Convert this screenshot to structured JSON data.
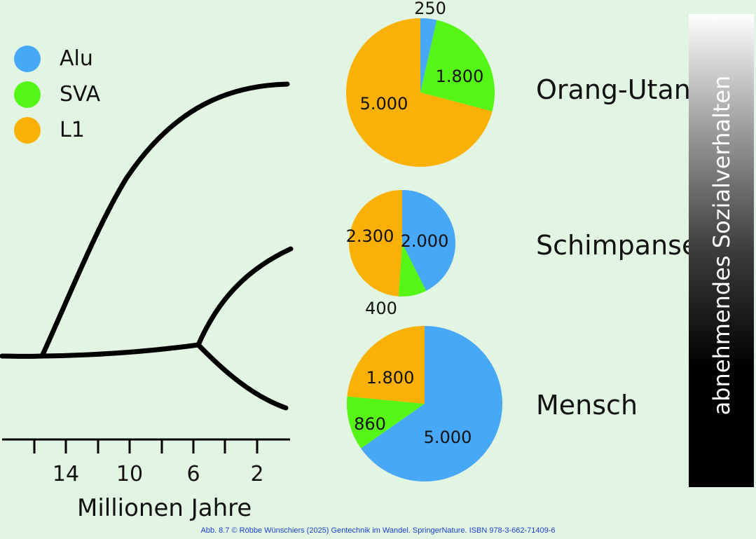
{
  "legend": [
    {
      "label": "Alu",
      "color": "#48a8f8"
    },
    {
      "label": "SVA",
      "color": "#55f516"
    },
    {
      "label": "L1",
      "color": "#fab005"
    }
  ],
  "species": {
    "orang": "Orang-Utan",
    "schimp": "Schimpanse",
    "mensch": "Mensch"
  },
  "axis": {
    "title": "Millionen Jahre",
    "tick_labels": [
      "14",
      "10",
      "6",
      "2"
    ]
  },
  "gradient_label": "abnehmendes Sozialverhalten",
  "footer": "Abb. 8.7 © Röbbe Wünschiers (2025) Gentechnik im Wandel. SpringerNature. ISBN 978-3-662-71409-6",
  "chart_data": {
    "type": "pie",
    "series_names": [
      "Alu",
      "SVA",
      "L1"
    ],
    "pies": [
      {
        "name": "Orang-Utan",
        "values": [
          250,
          1800,
          5000
        ],
        "labels": [
          "250",
          "1.800",
          "5.000"
        ]
      },
      {
        "name": "Schimpanse",
        "values": [
          2000,
          400,
          2300
        ],
        "labels": [
          "2.000",
          "400",
          "2.300"
        ]
      },
      {
        "name": "Mensch",
        "values": [
          5000,
          860,
          1800
        ],
        "labels": [
          "5.000",
          "860",
          "1.800"
        ]
      }
    ]
  }
}
